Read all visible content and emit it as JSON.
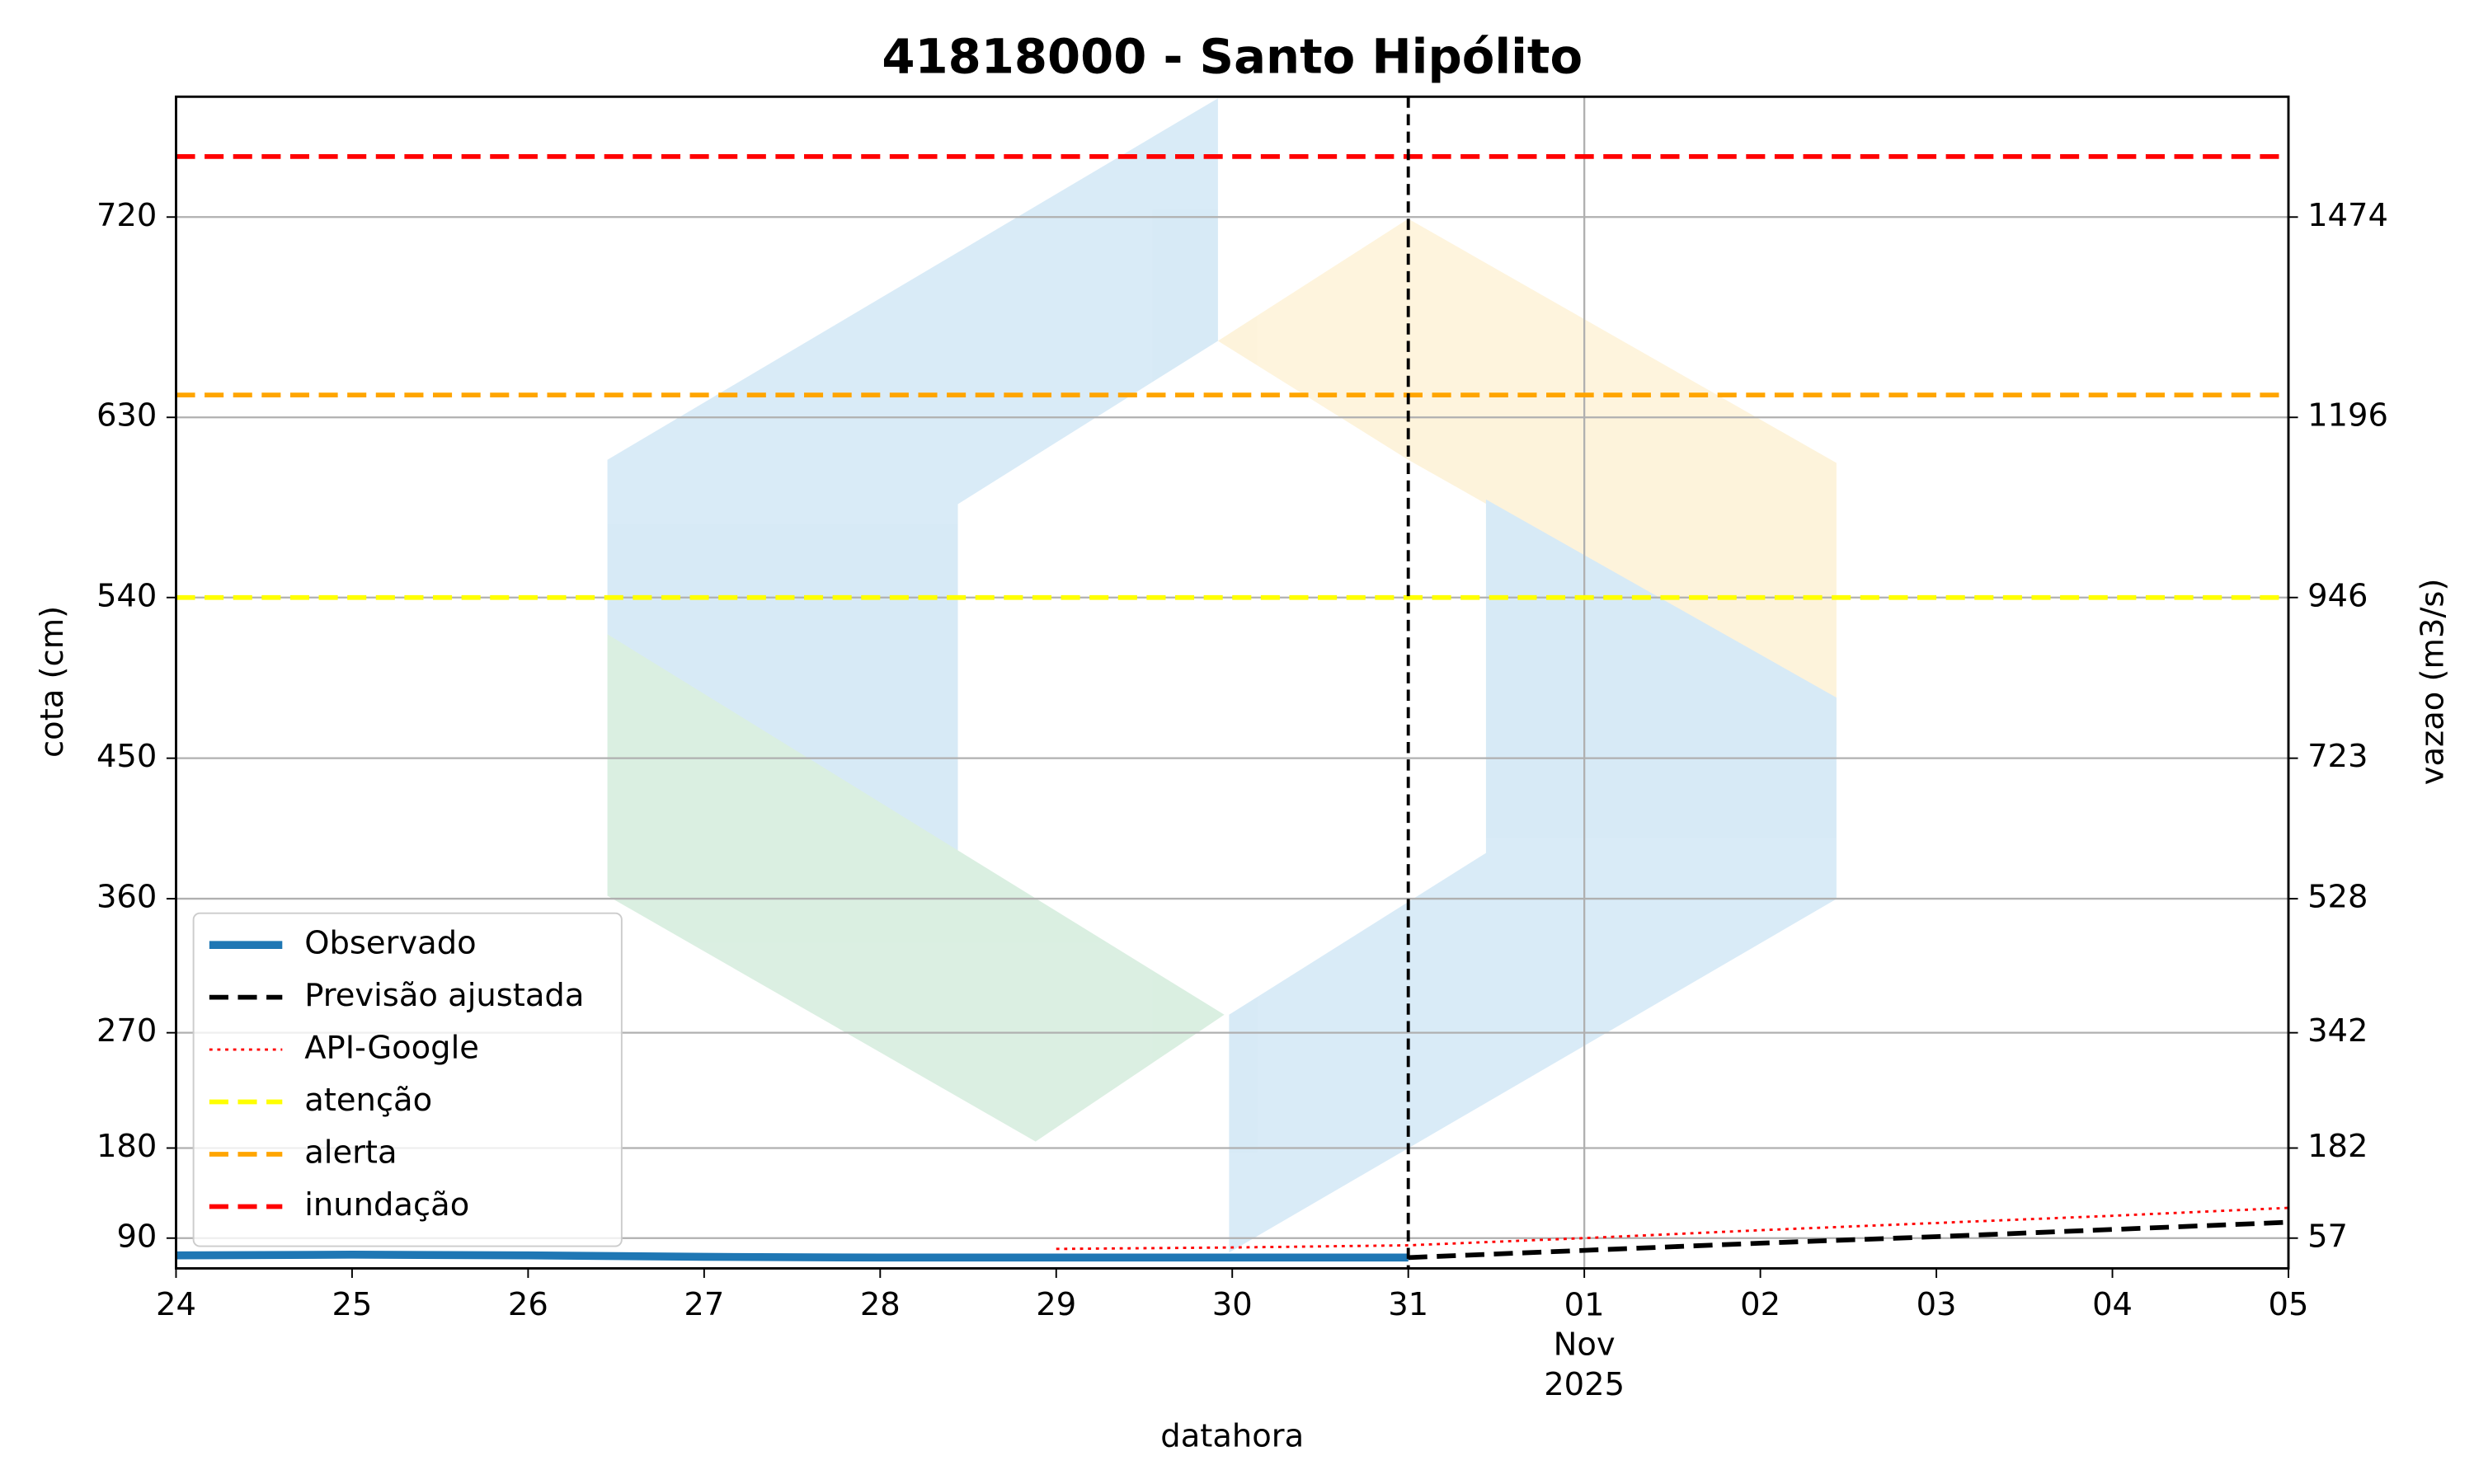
{
  "chart_data": {
    "type": "line",
    "title": "41818000 - Santo Hipólito",
    "x_label": "datahora",
    "y_label": "cota (cm)",
    "y2_label": "vazao (m3/s)",
    "xlim": [
      "2025-10-24",
      "2025-11-05"
    ],
    "xticks": [
      {
        "value": "2025-10-24",
        "label": "24"
      },
      {
        "value": "2025-10-25",
        "label": "25"
      },
      {
        "value": "2025-10-26",
        "label": "26"
      },
      {
        "value": "2025-10-27",
        "label": "27"
      },
      {
        "value": "2025-10-28",
        "label": "28"
      },
      {
        "value": "2025-10-29",
        "label": "29"
      },
      {
        "value": "2025-10-30",
        "label": "30"
      },
      {
        "value": "2025-10-31",
        "label": "31"
      },
      {
        "value": "2025-11-01",
        "label": "01\nNov\n2025"
      },
      {
        "value": "2025-11-02",
        "label": "02"
      },
      {
        "value": "2025-11-03",
        "label": "03"
      },
      {
        "value": "2025-11-04",
        "label": "04"
      },
      {
        "value": "2025-11-05",
        "label": "05"
      }
    ],
    "x_major": "2025-11-01",
    "vline": "2025-10-31",
    "yticks": [
      90,
      180,
      270,
      360,
      450,
      540,
      630,
      720
    ],
    "y2lim": [
      15,
      1641
    ],
    "y2ticks": [
      57,
      182,
      342,
      528,
      723,
      946,
      1196,
      1474
    ],
    "grid": true,
    "legend": "lower left",
    "series": [
      {
        "name": "Observado",
        "color": "#1f77b4",
        "style": "solid",
        "width": 5,
        "axis": "y2",
        "x": [
          "2025-10-24",
          "2025-10-25",
          "2025-10-26",
          "2025-10-27",
          "2025-10-28",
          "2025-10-29",
          "2025-10-30",
          "2025-10-31"
        ],
        "values": [
          33,
          34,
          33,
          31,
          30,
          30,
          30,
          30
        ]
      },
      {
        "name": "Previsão ajustada",
        "color": "#000000",
        "style": "dashed",
        "width": 3,
        "axis": "y2",
        "x": [
          "2025-10-31",
          "2025-11-01",
          "2025-11-02",
          "2025-11-03",
          "2025-11-04",
          "2025-11-05"
        ],
        "values": [
          30,
          40,
          50,
          59,
          69,
          79
        ]
      },
      {
        "name": "API-Google",
        "color": "#ff0000",
        "style": "dotted",
        "width": 1.5,
        "axis": "y2",
        "x": [
          "2025-10-29",
          "2025-10-30",
          "2025-10-31",
          "2025-11-01",
          "2025-11-02",
          "2025-11-03",
          "2025-11-04",
          "2025-11-05"
        ],
        "values": [
          42,
          44,
          47,
          57,
          68,
          78,
          88,
          99
        ]
      },
      {
        "name": "atenção",
        "color": "#ffff00",
        "style": "dashed",
        "width": 3,
        "axis": "y2",
        "x": [
          "2025-10-24",
          "2025-11-05"
        ],
        "values": [
          946,
          946
        ]
      },
      {
        "name": "alerta",
        "color": "#ffa500",
        "style": "dashed",
        "width": 3,
        "axis": "y2",
        "x": [
          "2025-10-24",
          "2025-11-05"
        ],
        "values": [
          1227,
          1227
        ]
      },
      {
        "name": "inundação",
        "color": "#ff0000",
        "style": "dashed",
        "width": 3,
        "axis": "y2",
        "x": [
          "2025-10-24",
          "2025-11-05"
        ],
        "values": [
          1558,
          1558
        ]
      }
    ]
  }
}
